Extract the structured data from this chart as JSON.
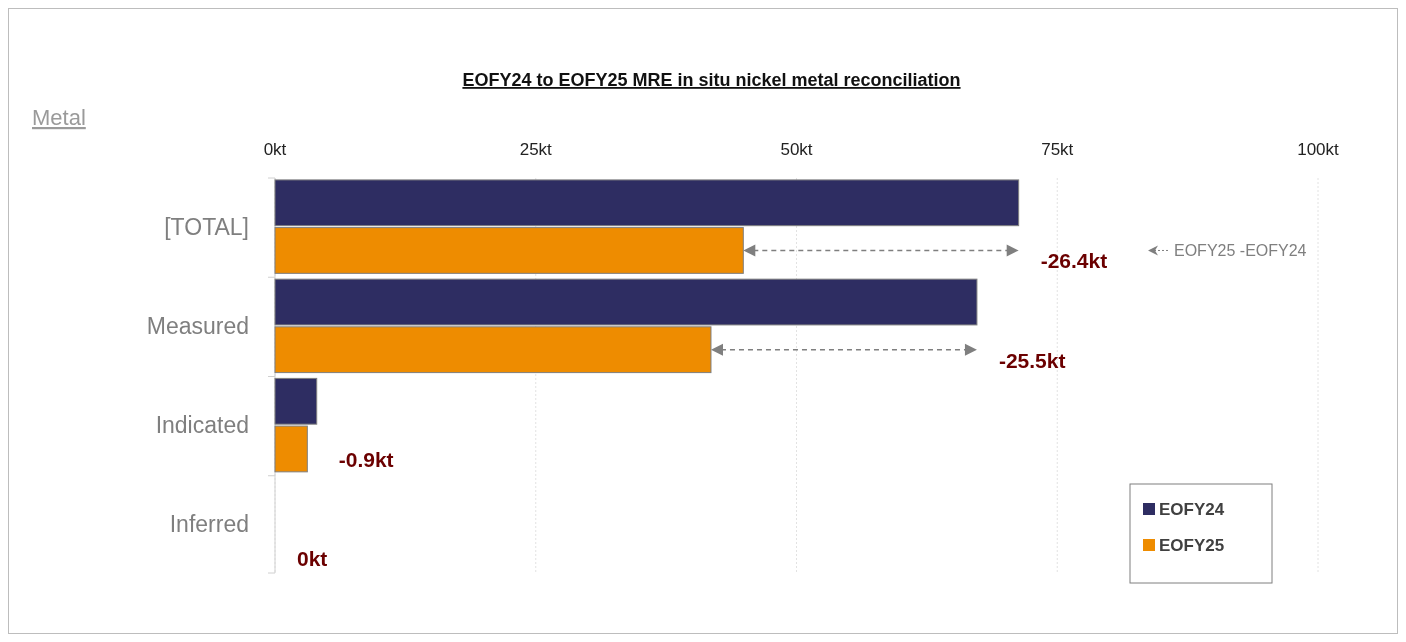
{
  "chart_data": {
    "type": "bar",
    "orientation": "horizontal",
    "title": "EOFY24 to EOFY25 MRE in situ nickel metal reconciliation",
    "ylabel": "Metal",
    "categories": [
      "[TOTAL]",
      "Measured",
      "Indicated",
      "Inferred"
    ],
    "series": [
      {
        "name": "EOFY24",
        "color": "#2e2d62",
        "values": [
          71.3,
          67.3,
          4.0,
          0
        ]
      },
      {
        "name": "EOFY25",
        "color": "#ee8c00",
        "values": [
          44.9,
          41.8,
          3.1,
          0
        ]
      }
    ],
    "xlim": [
      0,
      100
    ],
    "xticks": [
      {
        "value": 0,
        "label": "0kt"
      },
      {
        "value": 25,
        "label": "25kt"
      },
      {
        "value": 50,
        "label": "50kt"
      },
      {
        "value": 75,
        "label": "75kt"
      },
      {
        "value": 100,
        "label": "100kt"
      }
    ],
    "grid": "x",
    "legend": "bottom right",
    "annotations": [
      {
        "text": "-26.4kt",
        "x": 71.3,
        "y": "[TOTAL]"
      },
      {
        "text": "-25.5kt",
        "x": 67.3,
        "y": "Measured"
      },
      {
        "text": "-0.9kt",
        "x": 4.0,
        "y": "Indicated"
      },
      {
        "text": "0kt",
        "x": 0,
        "y": "Inferred"
      },
      "EOFY25 -EOFY24"
    ]
  }
}
